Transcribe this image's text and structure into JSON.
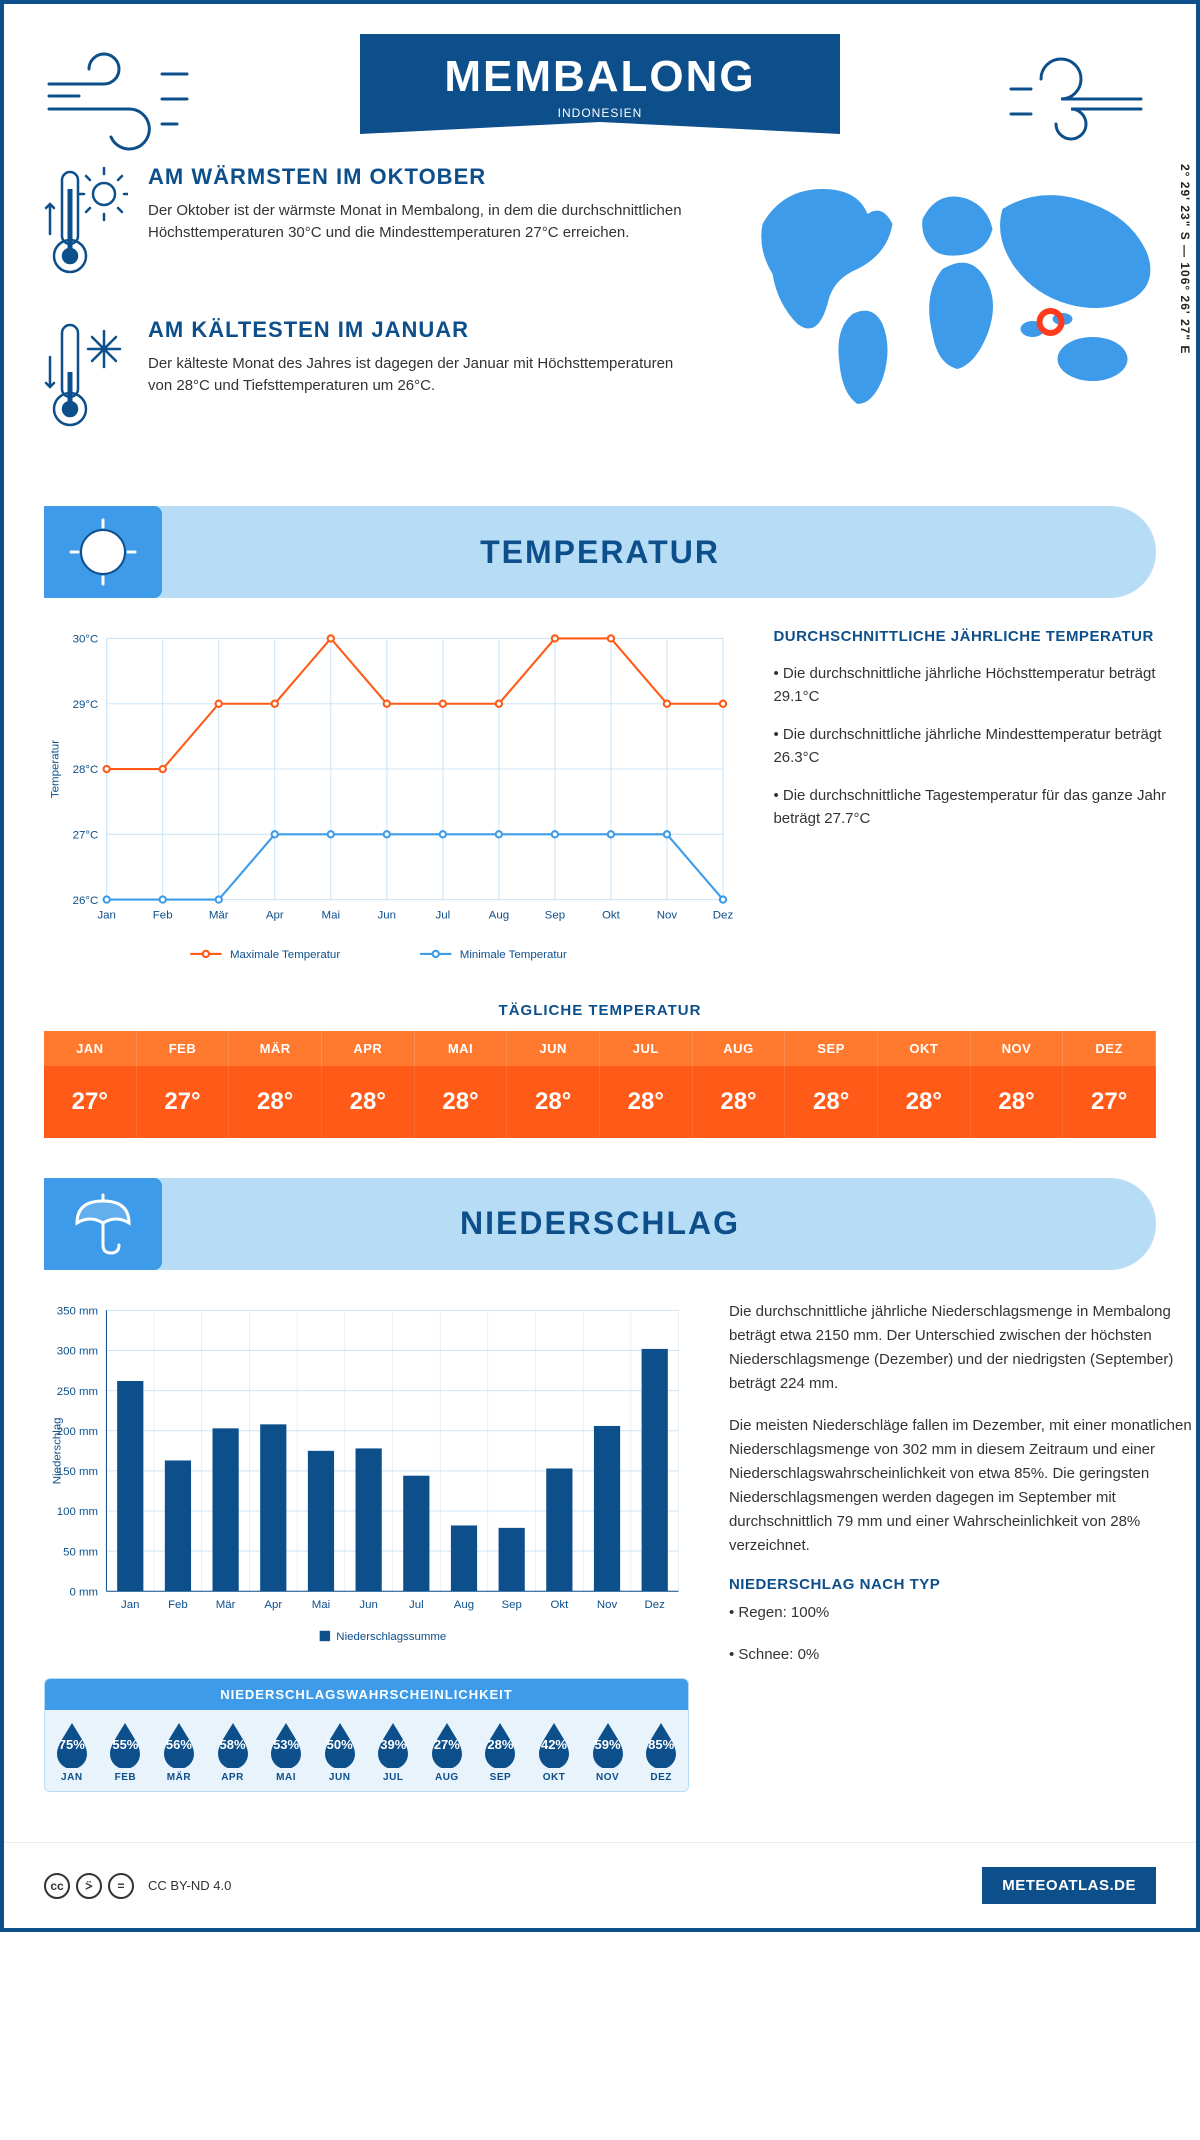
{
  "header": {
    "city": "MEMBALONG",
    "country": "INDONESIEN"
  },
  "coords": "2° 29' 23\" S — 106° 26' 27\" E",
  "facts": {
    "warm": {
      "title": "AM WÄRMSTEN IM OKTOBER",
      "text": "Der Oktober ist der wärmste Monat in Membalong, in dem die durchschnittlichen Höchsttemperaturen 30°C und die Mindesttemperaturen 27°C erreichen."
    },
    "cold": {
      "title": "AM KÄLTESTEN IM JANUAR",
      "text": "Der kälteste Monat des Jahres ist dagegen der Januar mit Höchsttemperaturen von 28°C und Tiefsttemperaturen um 26°C."
    }
  },
  "colors": {
    "brand": "#0d4f8b",
    "light_blue": "#b7dcf5",
    "mid_blue": "#3d9be9",
    "orange_head": "#ff7a2e",
    "orange_body": "#ff5a17",
    "max_line": "#ff5a17",
    "min_line": "#3d9be9",
    "bar_fill": "#0d4f8b",
    "grid": "#cfe5f5",
    "axis_text": "#0d4f8b"
  },
  "months": [
    "Jan",
    "Feb",
    "Mär",
    "Apr",
    "Mai",
    "Jun",
    "Jul",
    "Aug",
    "Sep",
    "Okt",
    "Nov",
    "Dez"
  ],
  "months_upper": [
    "JAN",
    "FEB",
    "MÄR",
    "APR",
    "MAI",
    "JUN",
    "JUL",
    "AUG",
    "SEP",
    "OKT",
    "NOV",
    "DEZ"
  ],
  "temp_section": {
    "title": "TEMPERATUR"
  },
  "temp_chart": {
    "type": "line",
    "ylabel": "Temperatur",
    "ylim": [
      26,
      30
    ],
    "ytick_step": 1,
    "ytick_suffix": "°C",
    "max_series": [
      28,
      28,
      29,
      29,
      30,
      29,
      29,
      29,
      30,
      30,
      29,
      29
    ],
    "min_series": [
      26,
      26,
      26,
      27,
      27,
      27,
      27,
      27,
      27,
      27,
      27,
      26
    ],
    "legend": {
      "max": "Maximale Temperatur",
      "min": "Minimale Temperatur"
    },
    "line_width": 2,
    "marker_radius": 3
  },
  "temp_text": {
    "title": "DURCHSCHNITTLICHE JÄHRLICHE TEMPERATUR",
    "b1": "• Die durchschnittliche jährliche Höchsttemperatur beträgt 29.1°C",
    "b2": "• Die durchschnittliche jährliche Mindesttemperatur beträgt 26.3°C",
    "b3": "• Die durchschnittliche Tagestemperatur für das ganze Jahr beträgt 27.7°C"
  },
  "daily": {
    "title": "TÄGLICHE TEMPERATUR",
    "values": [
      "27°",
      "27°",
      "28°",
      "28°",
      "28°",
      "28°",
      "28°",
      "28°",
      "28°",
      "28°",
      "28°",
      "27°"
    ]
  },
  "precip_section": {
    "title": "NIEDERSCHLAG"
  },
  "precip_chart": {
    "type": "bar",
    "ylabel": "Niederschlag",
    "ylim": [
      0,
      350
    ],
    "ytick_step": 50,
    "ytick_suffix": " mm",
    "values": [
      262,
      163,
      203,
      208,
      175,
      178,
      144,
      82,
      79,
      153,
      206,
      302
    ],
    "legend": "Niederschlagssumme",
    "bar_width": 0.55
  },
  "precip_text": {
    "p1": "Die durchschnittliche jährliche Niederschlagsmenge in Membalong beträgt etwa 2150 mm. Der Unterschied zwischen der höchsten Niederschlagsmenge (Dezember) und der niedrigsten (September) beträgt 224 mm.",
    "p2": "Die meisten Niederschläge fallen im Dezember, mit einer monatlichen Niederschlagsmenge von 302 mm in diesem Zeitraum und einer Niederschlagswahrscheinlichkeit von etwa 85%. Die geringsten Niederschlagsmengen werden dagegen im September mit durchschnittlich 79 mm und einer Wahrscheinlichkeit von 28% verzeichnet.",
    "type_title": "NIEDERSCHLAG NACH TYP",
    "type_b1": "• Regen: 100%",
    "type_b2": "• Schnee: 0%"
  },
  "prob": {
    "title": "NIEDERSCHLAGSWAHRSCHEINLICHKEIT",
    "values": [
      "75%",
      "55%",
      "56%",
      "58%",
      "53%",
      "50%",
      "39%",
      "27%",
      "28%",
      "42%",
      "59%",
      "85%"
    ]
  },
  "footer": {
    "license": "CC BY-ND 4.0",
    "site": "METEOATLAS.DE"
  }
}
